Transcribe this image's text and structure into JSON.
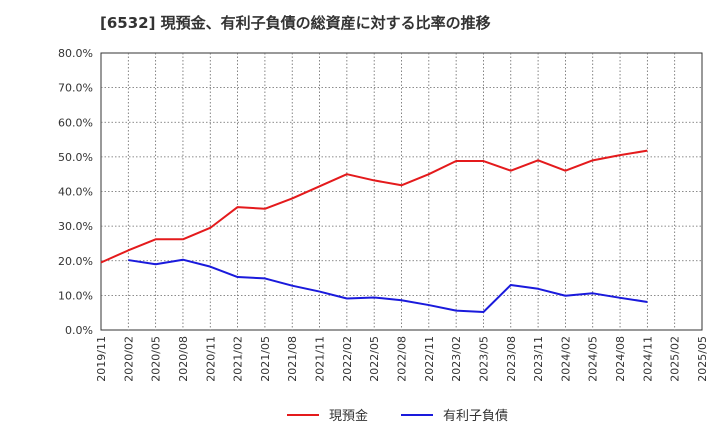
{
  "chart_data": {
    "type": "line",
    "title": "[6532]  現預金、有利子負債の総資産に対する比率の推移",
    "xlabel": "",
    "ylabel": "",
    "ylim": [
      0,
      80
    ],
    "y_ticks": [
      "0.0%",
      "10.0%",
      "20.0%",
      "30.0%",
      "40.0%",
      "50.0%",
      "60.0%",
      "70.0%",
      "80.0%"
    ],
    "categories": [
      "2019/11",
      "2020/02",
      "2020/05",
      "2020/08",
      "2020/11",
      "2021/02",
      "2021/05",
      "2021/08",
      "2021/11",
      "2022/02",
      "2022/05",
      "2022/08",
      "2022/11",
      "2023/02",
      "2023/05",
      "2023/08",
      "2023/11",
      "2024/02",
      "2024/05",
      "2024/08",
      "2024/11",
      "2025/02",
      "2025/05"
    ],
    "grid": true,
    "legend_position": "bottom",
    "series": [
      {
        "name": "現預金",
        "color": "#e41a1c",
        "values": [
          19.5,
          23.0,
          26.2,
          26.2,
          29.5,
          35.5,
          35.0,
          38.0,
          41.5,
          45.0,
          43.2,
          41.8,
          45.0,
          48.8,
          48.8,
          46.0,
          49.0,
          46.0,
          49.0,
          50.5,
          51.8,
          null,
          null
        ]
      },
      {
        "name": "有利子負債",
        "color": "#1a1adc",
        "values": [
          null,
          20.2,
          19.0,
          20.3,
          18.3,
          15.3,
          14.9,
          12.8,
          11.1,
          9.1,
          9.4,
          8.6,
          7.2,
          5.6,
          5.2,
          13.0,
          11.9,
          9.9,
          10.6,
          9.3,
          8.1,
          null,
          null
        ]
      }
    ]
  }
}
